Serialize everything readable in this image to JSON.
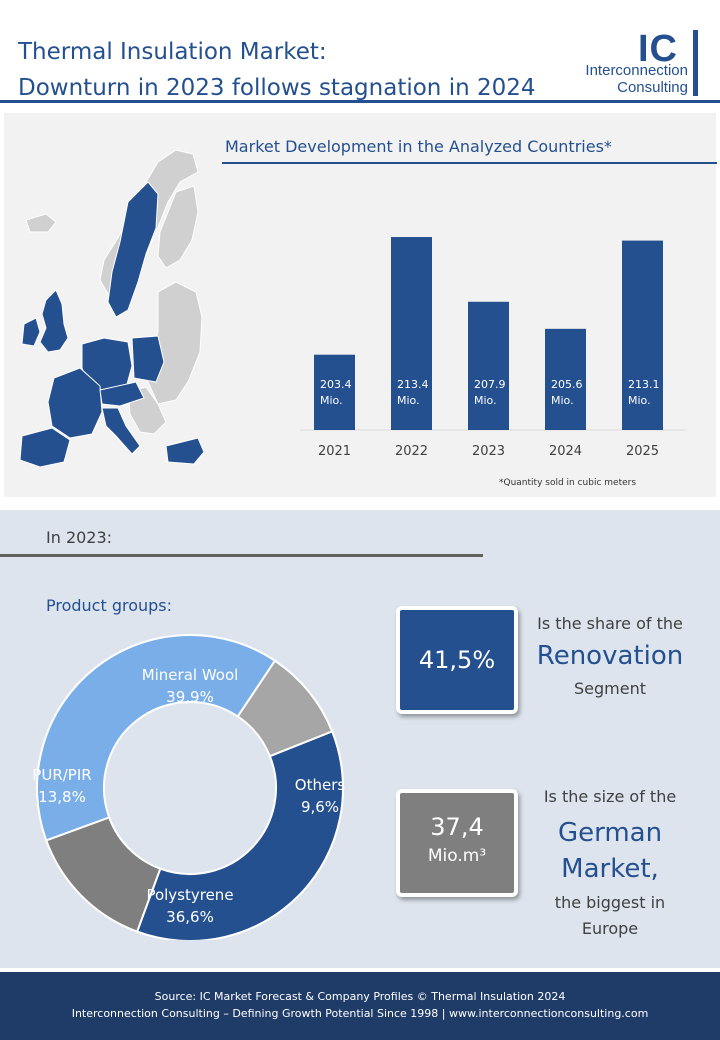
{
  "header": {
    "title_line1": "Thermal Insulation Market:",
    "title_line2": "Downturn in 2023 follows stagnation in 2024"
  },
  "logo": {
    "mark": "IC",
    "name_line1": "Interconnection",
    "name_line2": "Consulting"
  },
  "colors": {
    "brand_blue": "#24508f",
    "light_blue": "#7aaee9",
    "grey": "#7f7f7f",
    "light_grey": "#a6a6a6",
    "panel_grey": "#f2f2f2",
    "panel_blue": "#dde4ee",
    "footer_navy": "#1f3c69"
  },
  "chart_data": [
    {
      "type": "bar",
      "title": "Market Development  in the Analyzed Countries*",
      "categories": [
        "2021",
        "2022",
        "2023",
        "2024",
        "2025"
      ],
      "values": [
        203.4,
        213.4,
        207.9,
        205.6,
        213.1
      ],
      "data_labels": [
        "203.4\nMio.",
        "213.4\nMio.",
        "207.9\nMio.",
        "205.6\nMio.",
        "213.1\nMio."
      ],
      "ylim": [
        197,
        214
      ],
      "xlabel": "",
      "ylabel": "",
      "grid": false,
      "footnote": "*Quantity sold in cubic meters"
    },
    {
      "type": "pie",
      "title": "Product groups:",
      "categories": [
        "Mineral Wool",
        "Others",
        "Polystyrene",
        "PUR/PIR"
      ],
      "values": [
        39.9,
        9.6,
        36.6,
        13.8
      ],
      "labels": [
        "39,9%",
        "9,6%",
        "36,6%",
        "13,8%"
      ],
      "colors": [
        "#7aaee9",
        "#a6a6a6",
        "#24508f",
        "#7f7f7f"
      ]
    }
  ],
  "section": {
    "year_label": "In 2023:"
  },
  "kpi1": {
    "value": "41,5%",
    "text_top": "Is the share of the",
    "text_highlight": "Renovation",
    "text_bottom": "Segment"
  },
  "kpi2": {
    "value_line1": "37,4",
    "value_line2": "Mio.m³",
    "text_top": "Is the size of the",
    "text_highlight_line1": "German",
    "text_highlight_line2": "Market,",
    "text_bottom_line1": "the biggest in",
    "text_bottom_line2": "Europe"
  },
  "footer": {
    "source": "Source:  IC Market Forecast & Company Profiles © Thermal Insulation  2024",
    "tagline": "Interconnection  Consulting – Defining Growth Potential Since 1998 | www.interconnectionconsulting.com"
  }
}
